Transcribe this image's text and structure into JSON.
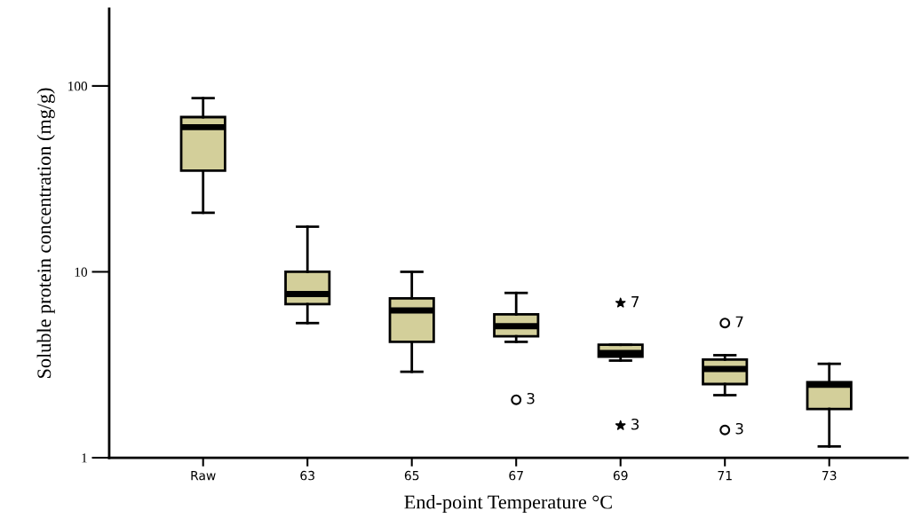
{
  "chart_data": {
    "type": "box",
    "xlabel": "End-point Temperature °C",
    "ylabel": "Soluble protein concentration (mg/g)",
    "categories": [
      "Raw",
      "63",
      "65",
      "67",
      "69",
      "71",
      "73"
    ],
    "log": true,
    "ylim": [
      1,
      260
    ],
    "yticks": [
      1,
      10,
      100
    ],
    "grid": false,
    "color": "#d3cf9a",
    "boxes": [
      {
        "low": 20.8,
        "q1": 35,
        "median": 60,
        "q3": 68,
        "high": 86
      },
      {
        "low": 5.3,
        "q1": 6.7,
        "median": 7.6,
        "q3": 10,
        "high": 17.5
      },
      {
        "low": 2.9,
        "q1": 4.2,
        "median": 6.2,
        "q3": 7.2,
        "high": 10
      },
      {
        "low": 4.2,
        "q1": 4.5,
        "median": 5.1,
        "q3": 5.9,
        "high": 7.7
      },
      {
        "low": 3.33,
        "q1": 3.5,
        "median": 3.66,
        "q3": 4.05,
        "high": 4.05
      },
      {
        "low": 2.17,
        "q1": 2.49,
        "median": 3.0,
        "q3": 3.37,
        "high": 3.56
      },
      {
        "low": 1.15,
        "q1": 1.83,
        "median": 2.47,
        "q3": 2.55,
        "high": 3.2
      }
    ],
    "series": [
      {
        "type": "scatter",
        "marker": "star",
        "color": "#000000",
        "x": [
          "69",
          "69"
        ],
        "values": [
          6.8,
          1.49
        ]
      },
      {
        "type": "scatter",
        "marker": "circle",
        "color": "#000000",
        "x": [
          "67",
          "71",
          "71"
        ],
        "values": [
          2.05,
          5.3,
          1.41
        ]
      }
    ],
    "annotations": [
      {
        "text": "3",
        "x": "67",
        "y": 2.05
      },
      {
        "text": "7",
        "x": "69",
        "y": 6.8
      },
      {
        "text": "3",
        "x": "69",
        "y": 1.49
      },
      {
        "text": "7",
        "x": "71",
        "y": 5.3
      },
      {
        "text": "3",
        "x": "71",
        "y": 1.41
      }
    ]
  }
}
